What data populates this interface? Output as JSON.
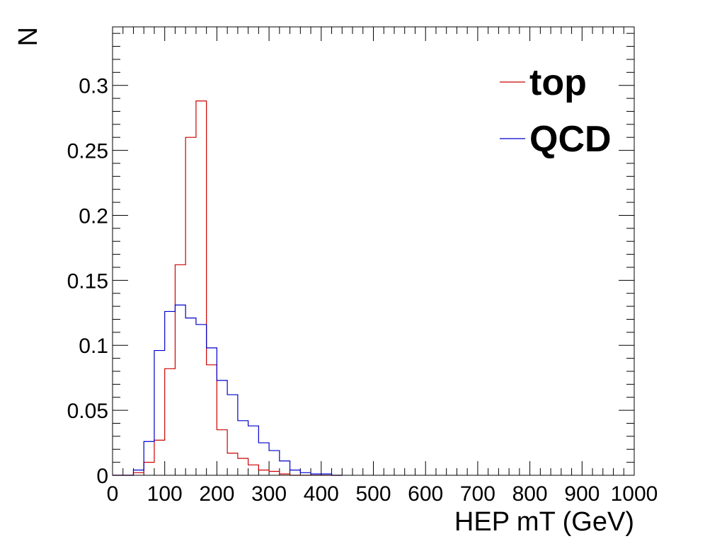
{
  "chart_data": {
    "type": "line",
    "xlabel": "HEP mT (GeV)",
    "ylabel": "N",
    "xlim": [
      0,
      1000
    ],
    "ylim": [
      0,
      0.345
    ],
    "x_ticks": [
      0,
      100,
      200,
      300,
      400,
      500,
      600,
      700,
      800,
      900,
      1000
    ],
    "x_tick_labels": [
      "0",
      "100",
      "200",
      "300",
      "400",
      "500",
      "600",
      "700",
      "800",
      "900",
      "1000"
    ],
    "y_ticks": [
      0,
      0.05,
      0.1,
      0.15,
      0.2,
      0.25,
      0.3
    ],
    "y_tick_labels": [
      "0",
      "0.05",
      "0.1",
      "0.15",
      "0.2",
      "0.25",
      "0.3"
    ],
    "legend_position": "top-right",
    "bin_edges": [
      0,
      20,
      40,
      60,
      80,
      100,
      120,
      140,
      160,
      180,
      200,
      220,
      240,
      260,
      280,
      300,
      320,
      340,
      360,
      380,
      400,
      420,
      440
    ],
    "series": [
      {
        "name": "top",
        "color": "#cc0000",
        "values": [
          0,
          0,
          0.002,
          0.01,
          0.027,
          0.082,
          0.162,
          0.26,
          0.288,
          0.085,
          0.035,
          0.017,
          0.013,
          0.008,
          0.004,
          0.003,
          0.001,
          0,
          0,
          0,
          0,
          0
        ]
      },
      {
        "name": "QCD",
        "color": "#0000cc",
        "values": [
          0,
          0,
          0.004,
          0.026,
          0.096,
          0.126,
          0.131,
          0.121,
          0.116,
          0.098,
          0.073,
          0.062,
          0.042,
          0.038,
          0.025,
          0.019,
          0.011,
          0.004,
          0.002,
          0.001,
          0.001,
          0
        ]
      }
    ]
  }
}
